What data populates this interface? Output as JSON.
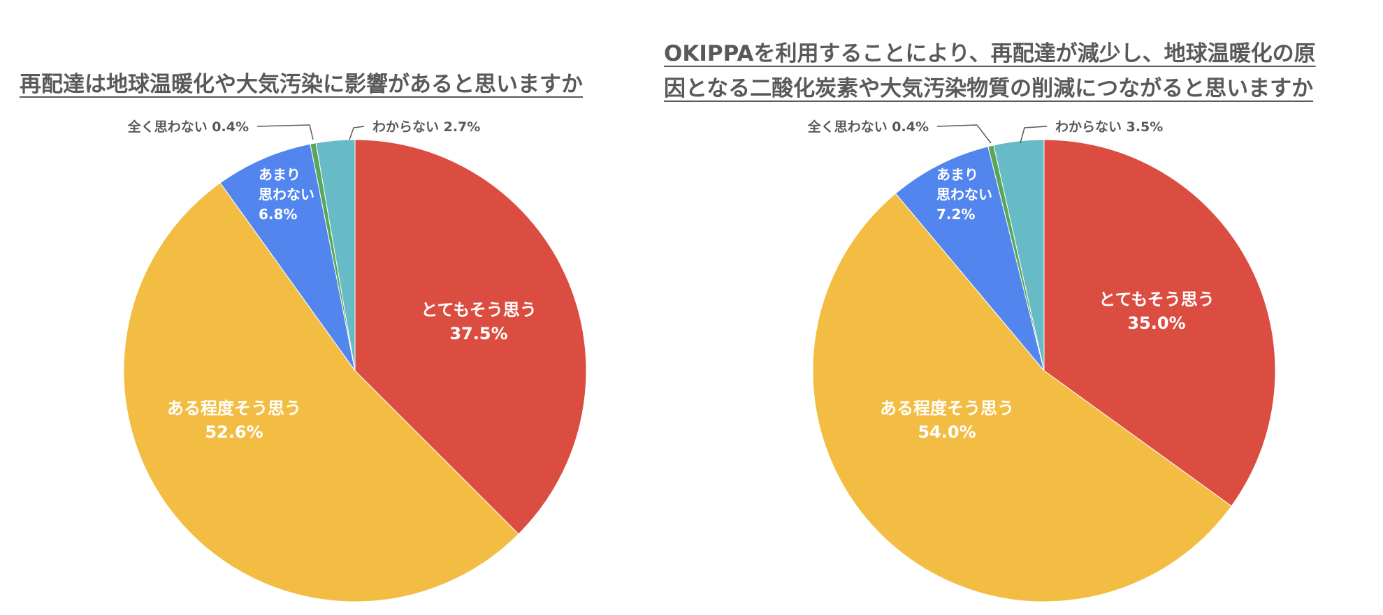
{
  "chart_data": [
    {
      "type": "pie",
      "title": "再配達は地球温暖化や大気汚染に影響があると思いますか",
      "slices": [
        {
          "label": "とてもそう思う",
          "value": 37.5,
          "value_label": "37.5%",
          "color": "#DB4D40"
        },
        {
          "label": "ある程度そう思う",
          "value": 52.6,
          "value_label": "52.6%",
          "color": "#F2BD42"
        },
        {
          "label": "あまり思わない",
          "label_lines": [
            "あまり",
            "思わない"
          ],
          "value": 6.8,
          "value_label": "6.8%",
          "color": "#5286EE"
        },
        {
          "label": "全く思わない",
          "value": 0.4,
          "value_label": "0.4%",
          "color": "#57A65A"
        },
        {
          "label": "わからない",
          "value": 2.7,
          "value_label": "2.7%",
          "color": "#66BBC6"
        }
      ]
    },
    {
      "type": "pie",
      "title": "OKIPPAを利用することにより、再配達が減少し、地球温暖化の原因となる二酸化炭素や大気汚染物質の削減につながると思いますか",
      "title_lines": [
        "OKIPPAを利用することにより、再配達が減少し、地球温暖化の原",
        "因となる二酸化炭素や大気汚染物質の削減につながると思いますか"
      ],
      "slices": [
        {
          "label": "とてもそう思う",
          "value": 35.0,
          "value_label": "35.0%",
          "color": "#DB4D40"
        },
        {
          "label": "ある程度そう思う",
          "value": 54.0,
          "value_label": "54.0%",
          "color": "#F2BD42"
        },
        {
          "label": "あまり思わない",
          "label_lines": [
            "あまり",
            "思わない"
          ],
          "value": 7.2,
          "value_label": "7.2%",
          "color": "#5286EE"
        },
        {
          "label": "全く思わない",
          "value": 0.4,
          "value_label": "0.4%",
          "color": "#57A65A"
        },
        {
          "label": "わからない",
          "value": 3.5,
          "value_label": "3.5%",
          "color": "#66BBC6"
        }
      ]
    }
  ]
}
